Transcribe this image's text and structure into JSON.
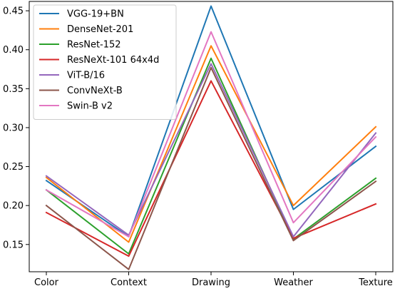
{
  "chart_data": {
    "type": "line",
    "title": "",
    "xlabel": "",
    "ylabel": "",
    "categories": [
      "Color",
      "Context",
      "Drawing",
      "Weather",
      "Texture"
    ],
    "ylim": [
      0.115,
      0.462
    ],
    "yticks": [
      0.15,
      0.2,
      0.25,
      0.3,
      0.35,
      0.4,
      0.45
    ],
    "ytick_labels": [
      "0.15",
      "0.20",
      "0.25",
      "0.30",
      "0.35",
      "0.40",
      "0.45"
    ],
    "grid": false,
    "legend_position": "top-left",
    "series": [
      {
        "name": "VGG-19+BN",
        "color": "#1f77b4",
        "values": [
          0.232,
          0.16,
          0.456,
          0.195,
          0.276
        ]
      },
      {
        "name": "DenseNet-201",
        "color": "#ff7f0e",
        "values": [
          0.236,
          0.153,
          0.405,
          0.2,
          0.301
        ]
      },
      {
        "name": "ResNet-152",
        "color": "#2ca02c",
        "values": [
          0.22,
          0.138,
          0.389,
          0.157,
          0.235
        ]
      },
      {
        "name": "ResNeXt-101 64x4d",
        "color": "#d62728",
        "values": [
          0.191,
          0.135,
          0.36,
          0.158,
          0.202
        ]
      },
      {
        "name": "ViT-B/16",
        "color": "#9467bd",
        "values": [
          0.238,
          0.162,
          0.382,
          0.16,
          0.293
        ]
      },
      {
        "name": "ConvNeXt-B",
        "color": "#8c564b",
        "values": [
          0.2,
          0.118,
          0.377,
          0.155,
          0.231
        ]
      },
      {
        "name": "Swin-B v2",
        "color": "#e377c2",
        "values": [
          0.22,
          0.16,
          0.423,
          0.178,
          0.288
        ]
      }
    ]
  }
}
